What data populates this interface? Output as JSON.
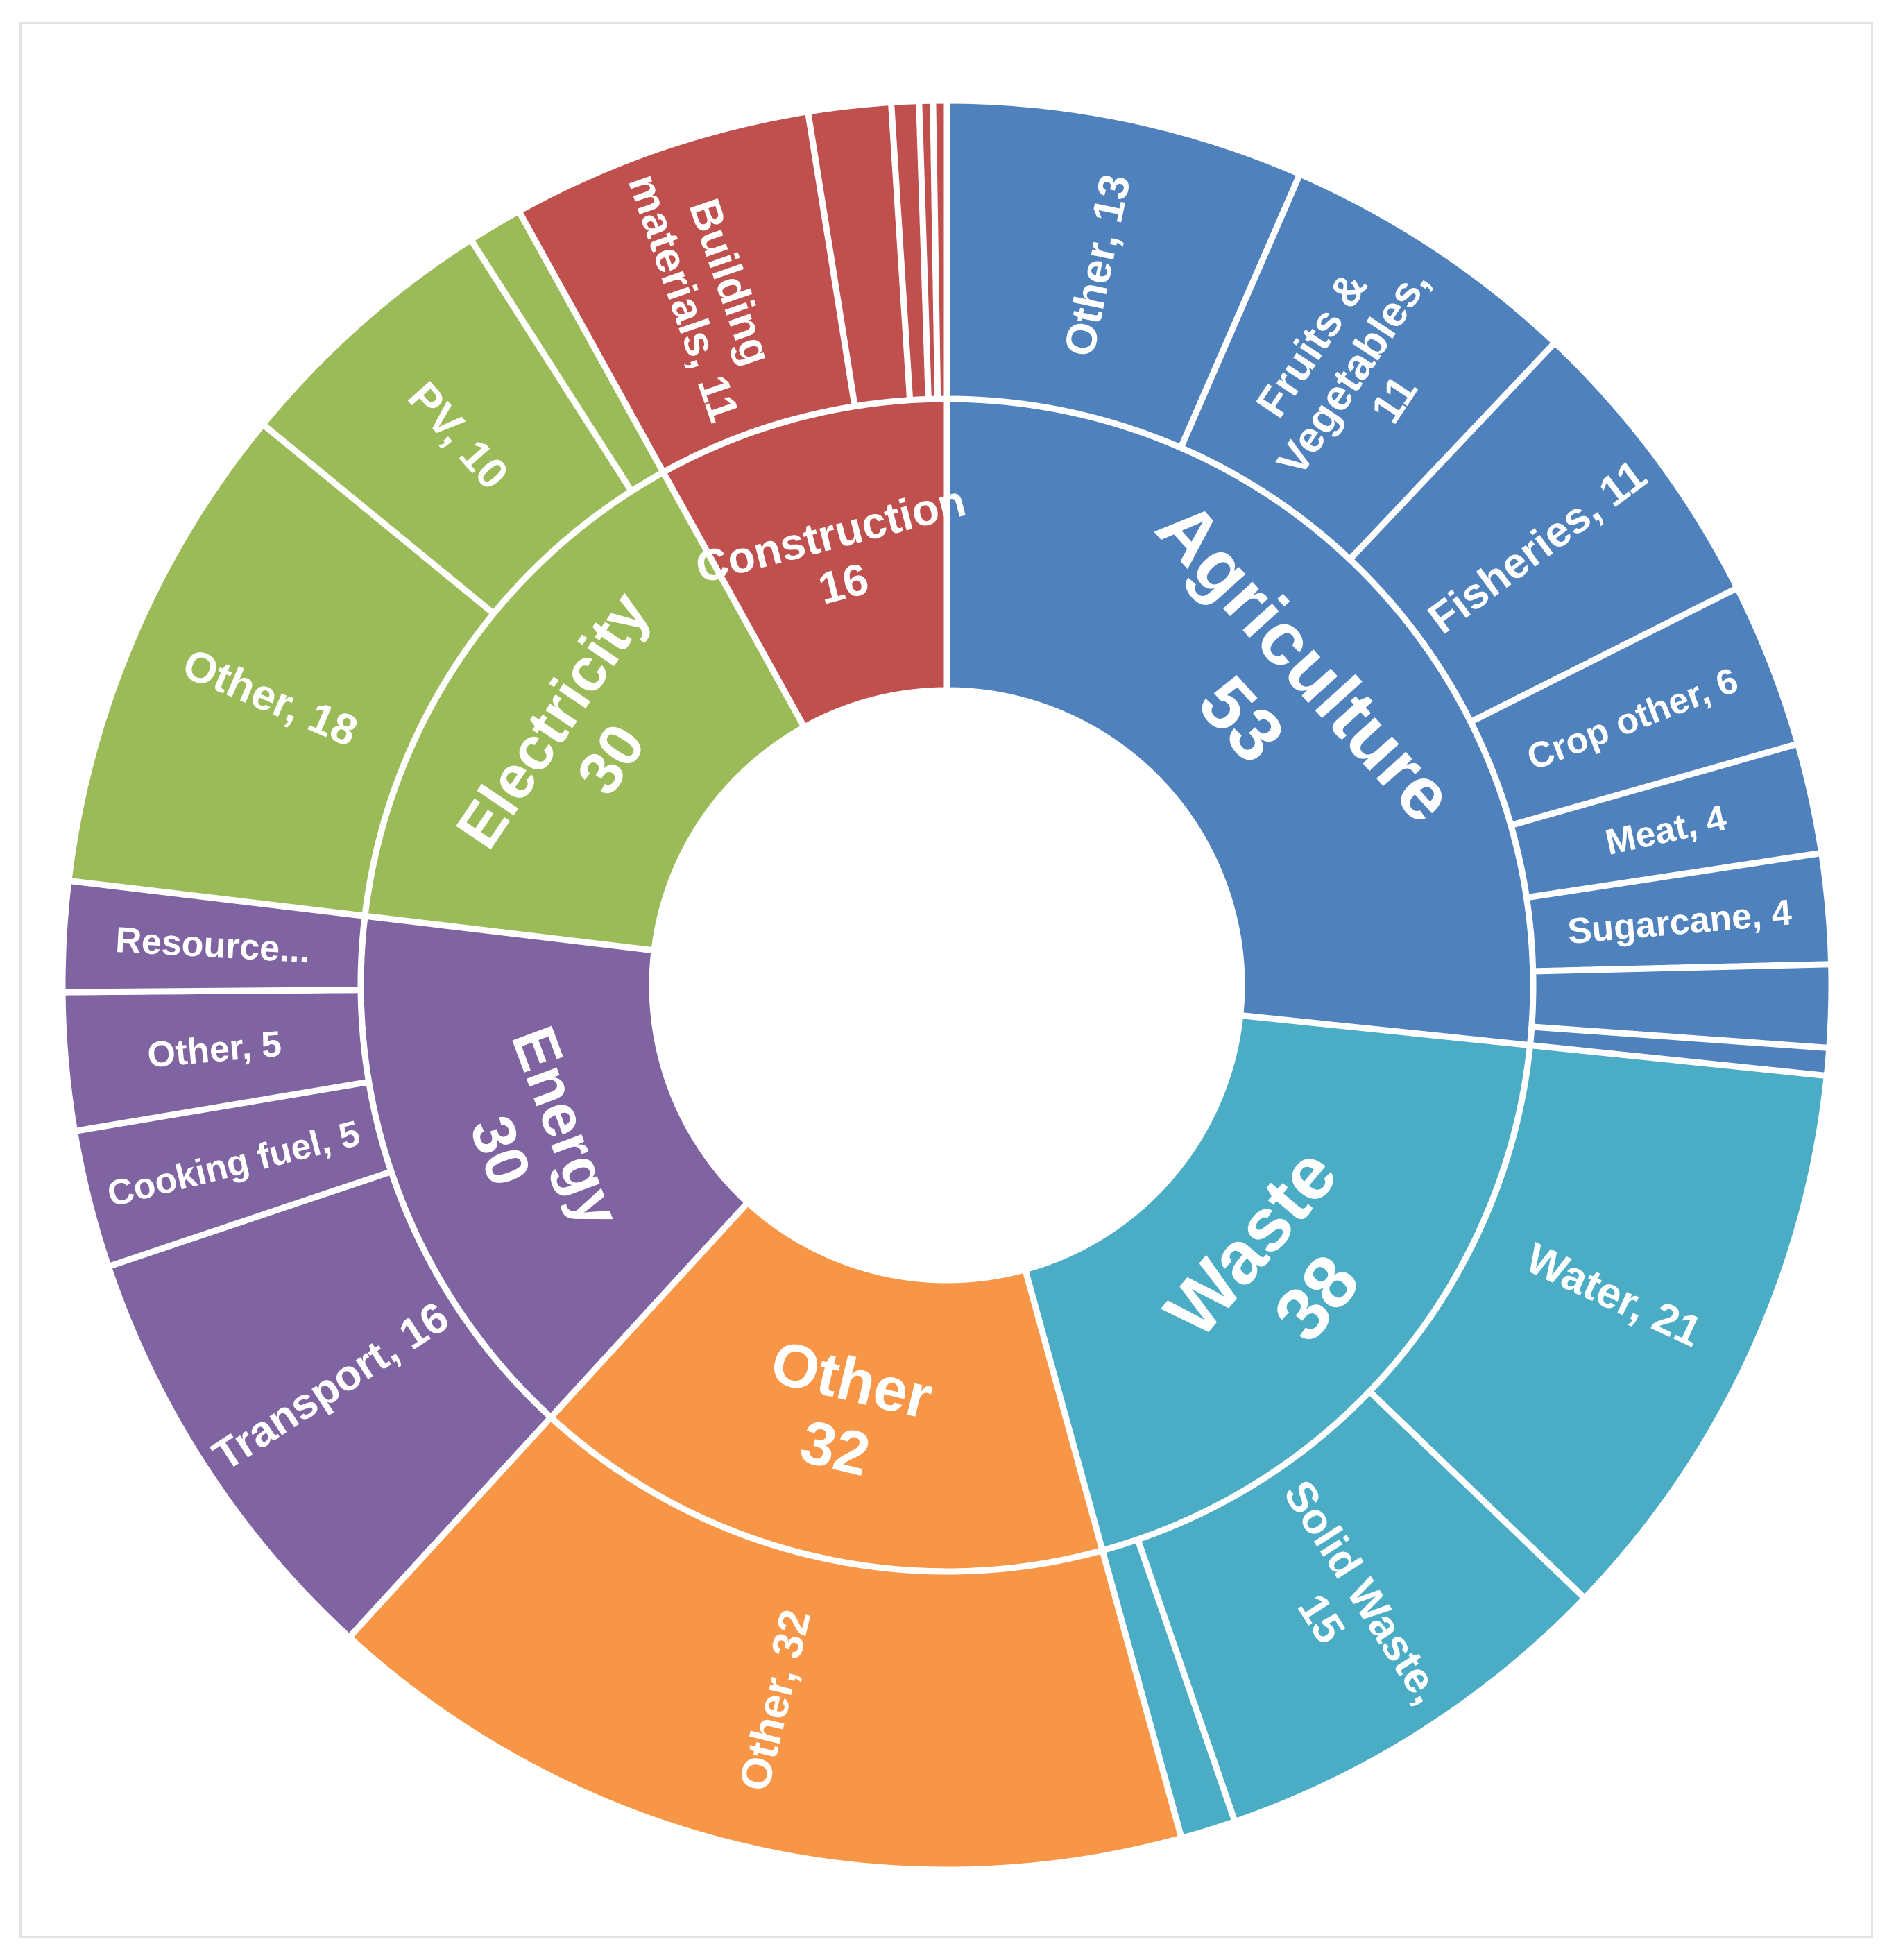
{
  "chart_data": {
    "type": "sunburst",
    "title": "",
    "categories": [
      {
        "name": "Agriculture",
        "value": 53,
        "color": "#4f81bd",
        "inner_label": [
          "Agriculture",
          "53"
        ],
        "children": [
          {
            "name": "Other",
            "value": 13,
            "label": [
              "Other, 13"
            ]
          },
          {
            "name": "Fruits & Vegetables",
            "value": 11,
            "label": [
              "Fruits &",
              "Vegetables,",
              "11"
            ]
          },
          {
            "name": "Fisheries",
            "value": 11,
            "label": [
              "Fisheries, 11"
            ]
          },
          {
            "name": "Crop other",
            "value": 6,
            "label": [
              "Crop other, 6"
            ]
          },
          {
            "name": "Meat",
            "value": 4,
            "label": [
              "Meat, 4"
            ]
          },
          {
            "name": "Sugarcane",
            "value": 4,
            "label": [
              "Sugarcane, 4"
            ]
          },
          {
            "name": "",
            "value": 3,
            "label": []
          },
          {
            "name": "",
            "value": 1,
            "label": []
          }
        ]
      },
      {
        "name": "Waste",
        "value": 38,
        "color": "#4bacc6",
        "inner_label": [
          "Waste",
          "38"
        ],
        "children": [
          {
            "name": "Water",
            "value": 21,
            "label": [
              "Water, 21"
            ]
          },
          {
            "name": "Solid Waste",
            "value": 15,
            "label": [
              "Solid Waste,",
              "15"
            ]
          },
          {
            "name": "",
            "value": 2,
            "label": []
          }
        ]
      },
      {
        "name": "Other",
        "value": 32,
        "color": "#f79646",
        "inner_label": [
          "Other",
          "32"
        ],
        "children": [
          {
            "name": "Other",
            "value": 32,
            "label": [
              "Other, 32"
            ]
          }
        ]
      },
      {
        "name": "Energy",
        "value": 30,
        "color": "#8064a2",
        "inner_label": [
          "Energy",
          "30"
        ],
        "children": [
          {
            "name": "Transport",
            "value": 16,
            "label": [
              "Transport, 16"
            ]
          },
          {
            "name": "Cooking fuel",
            "value": 5,
            "label": [
              "Cooking fuel, 5"
            ]
          },
          {
            "name": "Other",
            "value": 5,
            "label": [
              "Other, 5"
            ]
          },
          {
            "name": "Resource...",
            "value": 4,
            "label": [
              "Resource..."
            ]
          }
        ]
      },
      {
        "name": "Electricity",
        "value": 30,
        "color": "#9bbb59",
        "inner_label": [
          "Electricity",
          "30"
        ],
        "children": [
          {
            "name": "Other",
            "value": 18,
            "label": [
              "Other, 18"
            ]
          },
          {
            "name": "PV",
            "value": 10,
            "label": [
              "PV, 10"
            ]
          },
          {
            "name": "",
            "value": 2,
            "label": []
          }
        ]
      },
      {
        "name": "Construction",
        "value": 16,
        "color": "#c0504d",
        "inner_label": [
          "Construction",
          "16"
        ],
        "children": [
          {
            "name": "Building materials",
            "value": 11,
            "label": [
              "Building",
              "materials, 11"
            ]
          },
          {
            "name": "",
            "value": 3,
            "label": []
          },
          {
            "name": "",
            "value": 1,
            "label": []
          },
          {
            "name": "",
            "value": 0.5,
            "label": []
          },
          {
            "name": "",
            "value": 0.5,
            "label": []
          }
        ]
      }
    ]
  }
}
